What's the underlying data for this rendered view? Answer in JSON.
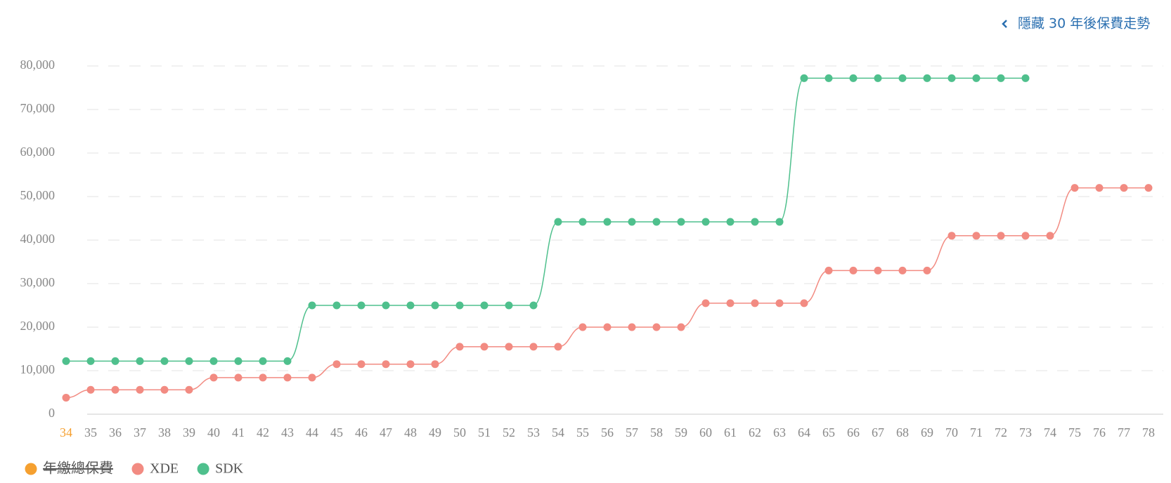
{
  "chart_data": {
    "type": "line",
    "toggle_label": "隱藏 30 年後保費走勢",
    "categories": [
      "34",
      "35",
      "36",
      "37",
      "38",
      "39",
      "40",
      "41",
      "42",
      "43",
      "44",
      "45",
      "46",
      "47",
      "48",
      "49",
      "50",
      "51",
      "52",
      "53",
      "54",
      "55",
      "56",
      "57",
      "58",
      "59",
      "60",
      "61",
      "62",
      "63",
      "64",
      "65",
      "66",
      "67",
      "68",
      "69",
      "70",
      "71",
      "72",
      "73",
      "74",
      "75",
      "76",
      "77",
      "78"
    ],
    "series": [
      {
        "name": "年繳總保費",
        "color": "#f5a030",
        "hidden": true,
        "values": [
          null,
          null,
          null,
          null,
          null,
          null,
          null,
          null,
          null,
          null,
          null,
          null,
          null,
          null,
          null,
          null,
          null,
          null,
          null,
          null,
          null,
          null,
          null,
          null,
          null,
          null,
          null,
          null,
          null,
          null,
          null,
          null,
          null,
          null,
          null,
          null,
          null,
          null,
          null,
          null,
          null,
          null,
          null,
          null,
          null
        ]
      },
      {
        "name": "XDE",
        "color": "#f28b82",
        "values": [
          3800,
          5600,
          5600,
          5600,
          5600,
          5600,
          8400,
          8400,
          8400,
          8400,
          8400,
          11500,
          11500,
          11500,
          11500,
          11500,
          15500,
          15500,
          15500,
          15500,
          15500,
          20000,
          20000,
          20000,
          20000,
          20000,
          25500,
          25500,
          25500,
          25500,
          25500,
          33000,
          33000,
          33000,
          33000,
          33000,
          41000,
          41000,
          41000,
          41000,
          41000,
          52000,
          52000,
          52000,
          52000
        ]
      },
      {
        "name": "SDK",
        "color": "#4fc08d",
        "values": [
          12200,
          12200,
          12200,
          12200,
          12200,
          12200,
          12200,
          12200,
          12200,
          12200,
          25000,
          25000,
          25000,
          25000,
          25000,
          25000,
          25000,
          25000,
          25000,
          25000,
          44200,
          44200,
          44200,
          44200,
          44200,
          44200,
          44200,
          44200,
          44200,
          44200,
          77200,
          77200,
          77200,
          77200,
          77200,
          77200,
          77200,
          77200,
          77200,
          77200,
          null,
          null,
          null,
          null,
          null
        ]
      }
    ],
    "ylim": [
      0,
      80000
    ],
    "yticks": [
      0,
      {
        "value": 10000,
        "label": "10,000"
      },
      {
        "value": 20000,
        "label": "20,000"
      },
      {
        "value": 30000,
        "label": "30,000"
      },
      {
        "value": 40000,
        "label": "40,000"
      },
      {
        "value": 50000,
        "label": "50,000"
      },
      {
        "value": 60000,
        "label": "60,000"
      },
      {
        "value": 70000,
        "label": "70,000"
      },
      {
        "value": 80000,
        "label": "80,000"
      }
    ],
    "grid": true
  }
}
